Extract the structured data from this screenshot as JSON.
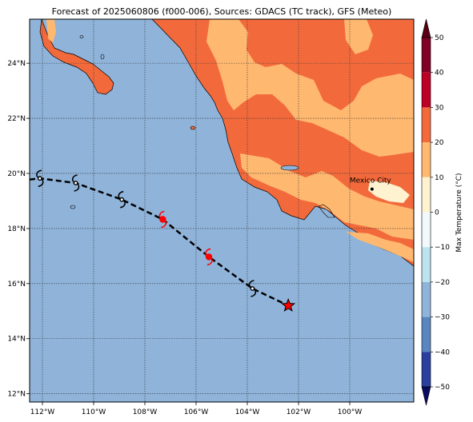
{
  "title": "Forecast of 2025060806 (f000-006), Sources: GDACS (TC track), GFS (Meteo)",
  "map": {
    "lon_range": [
      -112.5,
      -97.5
    ],
    "lat_range": [
      11.7,
      25.6
    ],
    "lon_ticks": [
      {
        "value": -112,
        "label": "112°W"
      },
      {
        "value": -110,
        "label": "110°W"
      },
      {
        "value": -108,
        "label": "108°W"
      },
      {
        "value": -106,
        "label": "106°W"
      },
      {
        "value": -104,
        "label": "104°W"
      },
      {
        "value": -102,
        "label": "102°W"
      },
      {
        "value": -100,
        "label": "100°W"
      }
    ],
    "lat_ticks": [
      {
        "value": 24,
        "label": "24°N"
      },
      {
        "value": 22,
        "label": "22°N"
      },
      {
        "value": 20,
        "label": "20°N"
      },
      {
        "value": 18,
        "label": "18°N"
      },
      {
        "value": 16,
        "label": "16°N"
      },
      {
        "value": 14,
        "label": "14°N"
      },
      {
        "value": 12,
        "label": "12°N"
      }
    ],
    "grid": true,
    "ocean_color": "#8fb3d9",
    "land_warm_color": "#f26a3c",
    "land_mild_color": "#ffb870",
    "land_cool_color": "#fff2d0"
  },
  "track": {
    "line_color": "#000000",
    "points": [
      {
        "lon": -112.5,
        "lat": 19.78,
        "kind": "none",
        "color": "#000000"
      },
      {
        "lon": -112.1,
        "lat": 19.82,
        "kind": "storm",
        "color": "#000000"
      },
      {
        "lon": -110.7,
        "lat": 19.65,
        "kind": "storm",
        "color": "#000000"
      },
      {
        "lon": -108.9,
        "lat": 19.05,
        "kind": "storm",
        "color": "#000000"
      },
      {
        "lon": -107.3,
        "lat": 18.33,
        "kind": "hurricane",
        "color": "#ff0000"
      },
      {
        "lon": -105.5,
        "lat": 16.97,
        "kind": "hurricane",
        "color": "#ff0000"
      },
      {
        "lon": -103.8,
        "lat": 15.82,
        "kind": "storm",
        "color": "#000000"
      },
      {
        "lon": -102.4,
        "lat": 15.2,
        "kind": "current",
        "color": "#ff0000"
      }
    ]
  },
  "city": {
    "name": "Mexico City",
    "lon": -99.13,
    "lat": 19.43
  },
  "colorbar": {
    "label": "Max Temperature (°C)",
    "min": -50,
    "max": 50,
    "ticks": [
      "50",
      "40",
      "30",
      "20",
      "10",
      "0",
      "−10",
      "−20",
      "−30",
      "−40",
      "−50"
    ],
    "bands": [
      {
        "from": 40,
        "to": 50,
        "color": "#800026"
      },
      {
        "from": 30,
        "to": 40,
        "color": "#bd0026"
      },
      {
        "from": 20,
        "to": 30,
        "color": "#f26a3c"
      },
      {
        "from": 10,
        "to": 20,
        "color": "#ffb870"
      },
      {
        "from": 0,
        "to": 10,
        "color": "#fff2d0"
      },
      {
        "from": -10,
        "to": 0,
        "color": "#f2f9fc"
      },
      {
        "from": -20,
        "to": -10,
        "color": "#bde3ef"
      },
      {
        "from": -30,
        "to": -20,
        "color": "#8fb3d9"
      },
      {
        "from": -40,
        "to": -30,
        "color": "#5a86c0"
      },
      {
        "from": -50,
        "to": -40,
        "color": "#2a3f9e"
      }
    ],
    "extend_max_color": "#5a0015",
    "extend_min_color": "#0a0a60"
  }
}
